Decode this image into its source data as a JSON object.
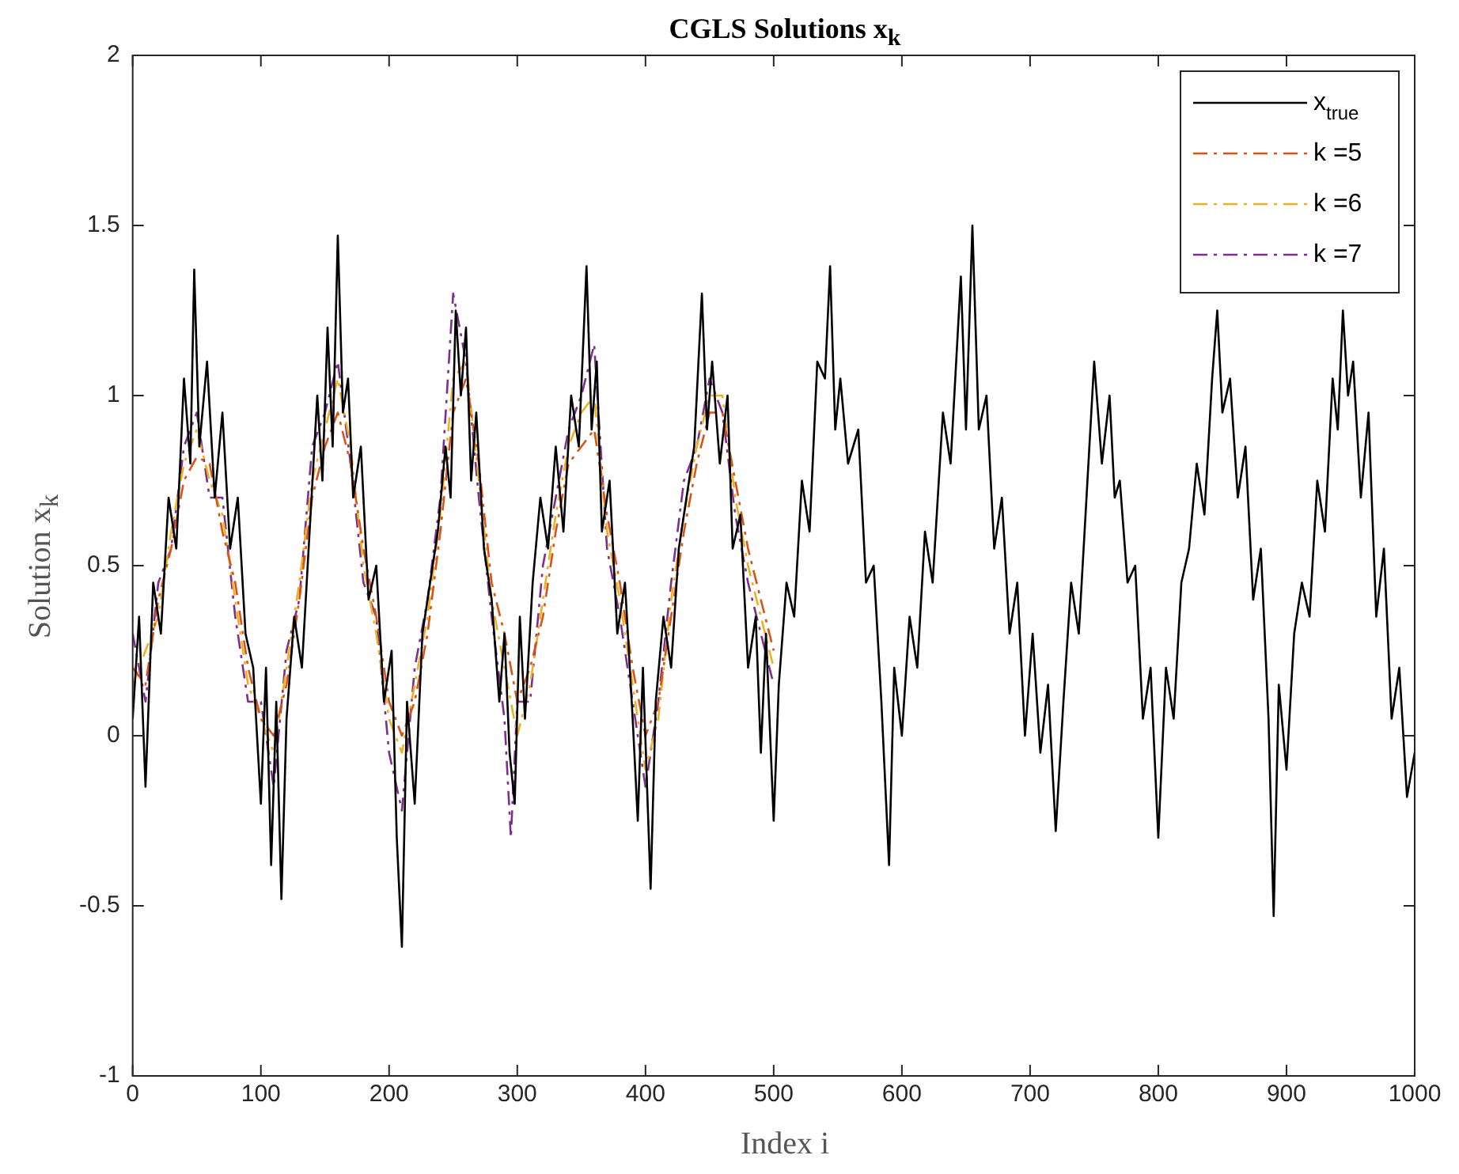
{
  "chart_data": {
    "type": "line",
    "title": "CGLS Solutions x$_{k}$",
    "xlabel": "Index i",
    "ylabel": "Solution x$_{k}$",
    "xlim": [
      0,
      1000
    ],
    "xticks": [
      0,
      100,
      200,
      300,
      400,
      500,
      600,
      700,
      800,
      900,
      1000
    ],
    "ylim": [
      -1,
      2
    ],
    "yticks": [
      -1,
      -0.5,
      0,
      0.5,
      1,
      1.5,
      2
    ],
    "grid": false,
    "legend": "top right",
    "marker": "none",
    "series": [
      {
        "name": "x$_{true}$",
        "color": "#000000",
        "line_style": "solid",
        "x": [
          0,
          5,
          10,
          16,
          22,
          28,
          34,
          40,
          45,
          48,
          52,
          58,
          64,
          70,
          76,
          82,
          88,
          94,
          100,
          104,
          108,
          112,
          116,
          120,
          126,
          132,
          138,
          144,
          148,
          152,
          156,
          160,
          164,
          168,
          172,
          178,
          184,
          190,
          196,
          202,
          206,
          210,
          214,
          220,
          226,
          232,
          238,
          244,
          248,
          252,
          256,
          260,
          264,
          268,
          274,
          280,
          286,
          290,
          294,
          298,
          302,
          306,
          312,
          318,
          324,
          330,
          336,
          342,
          348,
          354,
          358,
          362,
          366,
          372,
          378,
          384,
          390,
          394,
          398,
          404,
          408,
          414,
          420,
          426,
          432,
          438,
          444,
          448,
          452,
          458,
          464,
          468,
          474,
          480,
          486,
          490,
          494,
          500,
          504,
          510,
          516,
          522,
          528,
          534,
          540,
          544,
          548,
          552,
          558,
          566,
          572,
          578,
          584,
          590,
          594,
          600,
          606,
          612,
          618,
          624,
          632,
          638,
          646,
          650,
          655,
          660,
          666,
          672,
          678,
          684,
          690,
          696,
          702,
          708,
          714,
          720,
          726,
          732,
          738,
          744,
          750,
          756,
          762,
          766,
          770,
          776,
          782,
          788,
          794,
          800,
          806,
          812,
          818,
          824,
          830,
          836,
          842,
          846,
          850,
          856,
          862,
          868,
          874,
          880,
          886,
          890,
          894,
          900,
          906,
          912,
          918,
          924,
          930,
          936,
          940,
          944,
          948,
          952,
          958,
          964,
          970,
          976,
          982,
          988,
          994,
          1000
        ],
        "values": [
          0.05,
          0.35,
          -0.15,
          0.45,
          0.3,
          0.7,
          0.55,
          1.05,
          0.8,
          1.37,
          0.85,
          1.1,
          0.7,
          0.95,
          0.55,
          0.7,
          0.3,
          0.2,
          -0.2,
          0.2,
          -0.38,
          0.1,
          -0.48,
          0.05,
          0.35,
          0.2,
          0.6,
          1.0,
          0.75,
          1.2,
          0.85,
          1.47,
          0.95,
          1.05,
          0.7,
          0.85,
          0.4,
          0.5,
          0.1,
          0.25,
          -0.3,
          -0.62,
          0.1,
          -0.2,
          0.3,
          0.45,
          0.6,
          0.85,
          0.7,
          1.25,
          1.0,
          1.2,
          0.75,
          0.95,
          0.55,
          0.4,
          0.1,
          0.3,
          -0.05,
          -0.2,
          0.35,
          0.05,
          0.45,
          0.7,
          0.55,
          0.85,
          0.6,
          1.0,
          0.85,
          1.38,
          0.9,
          1.1,
          0.6,
          0.75,
          0.3,
          0.45,
          0.05,
          -0.25,
          0.2,
          -0.45,
          0.1,
          0.35,
          0.2,
          0.55,
          0.7,
          0.85,
          1.3,
          0.9,
          1.1,
          0.8,
          1.0,
          0.55,
          0.65,
          0.2,
          0.35,
          -0.05,
          0.3,
          -0.25,
          0.15,
          0.45,
          0.35,
          0.75,
          0.6,
          1.1,
          1.05,
          1.38,
          0.9,
          1.05,
          0.8,
          0.9,
          0.45,
          0.5,
          0.1,
          -0.38,
          0.2,
          0.0,
          0.35,
          0.2,
          0.6,
          0.45,
          0.95,
          0.8,
          1.35,
          0.9,
          1.5,
          0.9,
          1.0,
          0.55,
          0.7,
          0.3,
          0.45,
          0.0,
          0.3,
          -0.05,
          0.15,
          -0.28,
          0.1,
          0.45,
          0.3,
          0.7,
          1.1,
          0.8,
          1.0,
          0.7,
          0.75,
          0.45,
          0.5,
          0.05,
          0.2,
          -0.3,
          0.2,
          0.05,
          0.45,
          0.55,
          0.8,
          0.65,
          1.05,
          1.25,
          0.95,
          1.05,
          0.7,
          0.85,
          0.4,
          0.55,
          0.05,
          -0.53,
          0.15,
          -0.1,
          0.3,
          0.45,
          0.35,
          0.75,
          0.6,
          1.05,
          0.9,
          1.25,
          1.0,
          1.1,
          0.7,
          0.95,
          0.35,
          0.55,
          0.05,
          0.2,
          -0.18,
          -0.05
        ]
      },
      {
        "name": "k =5",
        "color": "#d95319",
        "line_style": "dashed",
        "x": [
          0,
          10,
          20,
          30,
          40,
          50,
          60,
          70,
          80,
          90,
          100,
          110,
          120,
          130,
          140,
          150,
          160,
          170,
          180,
          190,
          200,
          210,
          220,
          230,
          240,
          250,
          260,
          270,
          280,
          290,
          300,
          310,
          320,
          330,
          340,
          350,
          360,
          370,
          380,
          390,
          400,
          410,
          420,
          430,
          440,
          450,
          460,
          470,
          480,
          490,
          500
        ],
        "values": [
          0.2,
          0.15,
          0.4,
          0.55,
          0.75,
          0.82,
          0.8,
          0.6,
          0.45,
          0.2,
          0.05,
          0.0,
          0.15,
          0.4,
          0.7,
          0.85,
          0.95,
          0.8,
          0.55,
          0.35,
          0.1,
          0.0,
          0.1,
          0.3,
          0.6,
          0.95,
          1.05,
          0.8,
          0.45,
          0.3,
          0.1,
          0.2,
          0.35,
          0.6,
          0.8,
          0.85,
          0.9,
          0.65,
          0.45,
          0.2,
          0.0,
          0.1,
          0.35,
          0.6,
          0.8,
          0.95,
          0.95,
          0.75,
          0.55,
          0.4,
          0.25
        ]
      },
      {
        "name": "k =6",
        "color": "#edb120",
        "line_style": "dashed",
        "x": [
          0,
          10,
          20,
          30,
          40,
          50,
          60,
          70,
          80,
          90,
          100,
          110,
          120,
          130,
          140,
          150,
          160,
          170,
          180,
          190,
          200,
          210,
          220,
          230,
          240,
          250,
          260,
          270,
          280,
          290,
          300,
          310,
          320,
          330,
          340,
          350,
          360,
          370,
          380,
          390,
          400,
          410,
          420,
          430,
          440,
          450,
          460,
          470,
          480,
          490,
          500
        ],
        "values": [
          0.15,
          0.25,
          0.35,
          0.6,
          0.8,
          0.9,
          0.75,
          0.65,
          0.4,
          0.15,
          0.05,
          -0.05,
          0.2,
          0.45,
          0.75,
          0.9,
          1.05,
          0.85,
          0.5,
          0.3,
          0.05,
          -0.05,
          0.15,
          0.35,
          0.65,
          1.05,
          1.1,
          0.75,
          0.4,
          0.2,
          0.0,
          0.15,
          0.4,
          0.65,
          0.85,
          0.95,
          1.0,
          0.6,
          0.4,
          0.15,
          -0.1,
          0.05,
          0.4,
          0.65,
          0.85,
          1.0,
          1.0,
          0.7,
          0.5,
          0.35,
          0.2
        ]
      },
      {
        "name": "k =7",
        "color": "#7e2f8e",
        "line_style": "dashed",
        "x": [
          0,
          10,
          20,
          30,
          40,
          50,
          60,
          70,
          80,
          90,
          100,
          110,
          120,
          130,
          140,
          150,
          160,
          170,
          180,
          190,
          200,
          210,
          220,
          230,
          240,
          250,
          260,
          270,
          280,
          290,
          295,
          300,
          310,
          320,
          330,
          340,
          350,
          360,
          370,
          380,
          390,
          400,
          410,
          420,
          430,
          440,
          450,
          460,
          470,
          480,
          490,
          500
        ],
        "values": [
          0.3,
          0.1,
          0.45,
          0.55,
          0.85,
          0.95,
          0.7,
          0.7,
          0.35,
          0.1,
          0.1,
          -0.15,
          0.25,
          0.4,
          0.85,
          0.95,
          1.1,
          0.8,
          0.45,
          0.35,
          -0.05,
          -0.22,
          0.2,
          0.4,
          0.7,
          1.3,
          1.1,
          0.7,
          0.35,
          0.05,
          -0.3,
          0.1,
          0.1,
          0.5,
          0.7,
          0.9,
          1.0,
          1.15,
          0.55,
          0.35,
          0.1,
          -0.15,
          0.1,
          0.45,
          0.75,
          0.85,
          1.05,
          0.95,
          0.65,
          0.45,
          0.3,
          0.15
        ]
      }
    ]
  }
}
